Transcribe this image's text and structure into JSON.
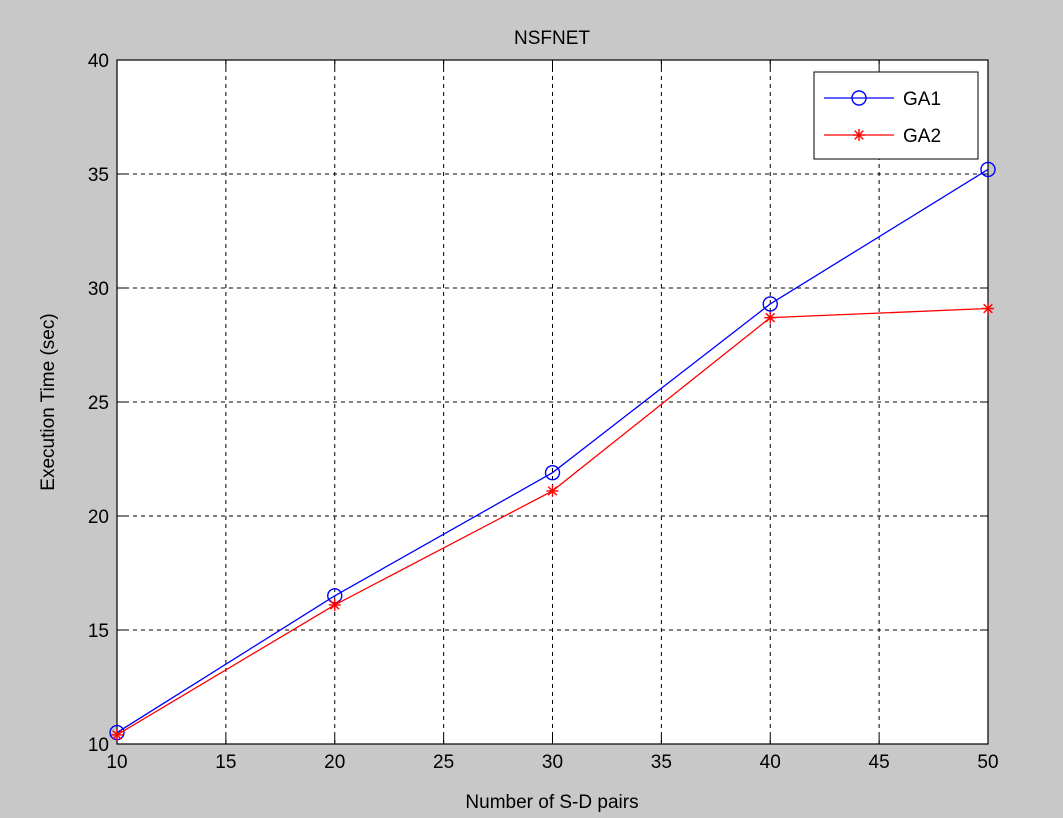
{
  "chart_data": {
    "type": "line",
    "title": "NSFNET",
    "xlabel": "Number of S-D pairs",
    "ylabel": "Execution Time (sec)",
    "xlim": [
      10,
      50
    ],
    "ylim": [
      10,
      40
    ],
    "xticks": [
      "10",
      "15",
      "20",
      "25",
      "30",
      "35",
      "40",
      "45",
      "50"
    ],
    "yticks": [
      "10",
      "15",
      "20",
      "25",
      "30",
      "35",
      "40"
    ],
    "grid": true,
    "legend_position": "top-right",
    "x": [
      10,
      20,
      30,
      40,
      50
    ],
    "series": [
      {
        "name": "GA1",
        "values": [
          10.5,
          16.5,
          21.9,
          29.3,
          35.2
        ],
        "color": "#0000ff",
        "marker": "circle"
      },
      {
        "name": "GA2",
        "values": [
          10.4,
          16.1,
          21.1,
          28.7,
          29.1
        ],
        "color": "#ff0000",
        "marker": "asterisk"
      }
    ]
  }
}
